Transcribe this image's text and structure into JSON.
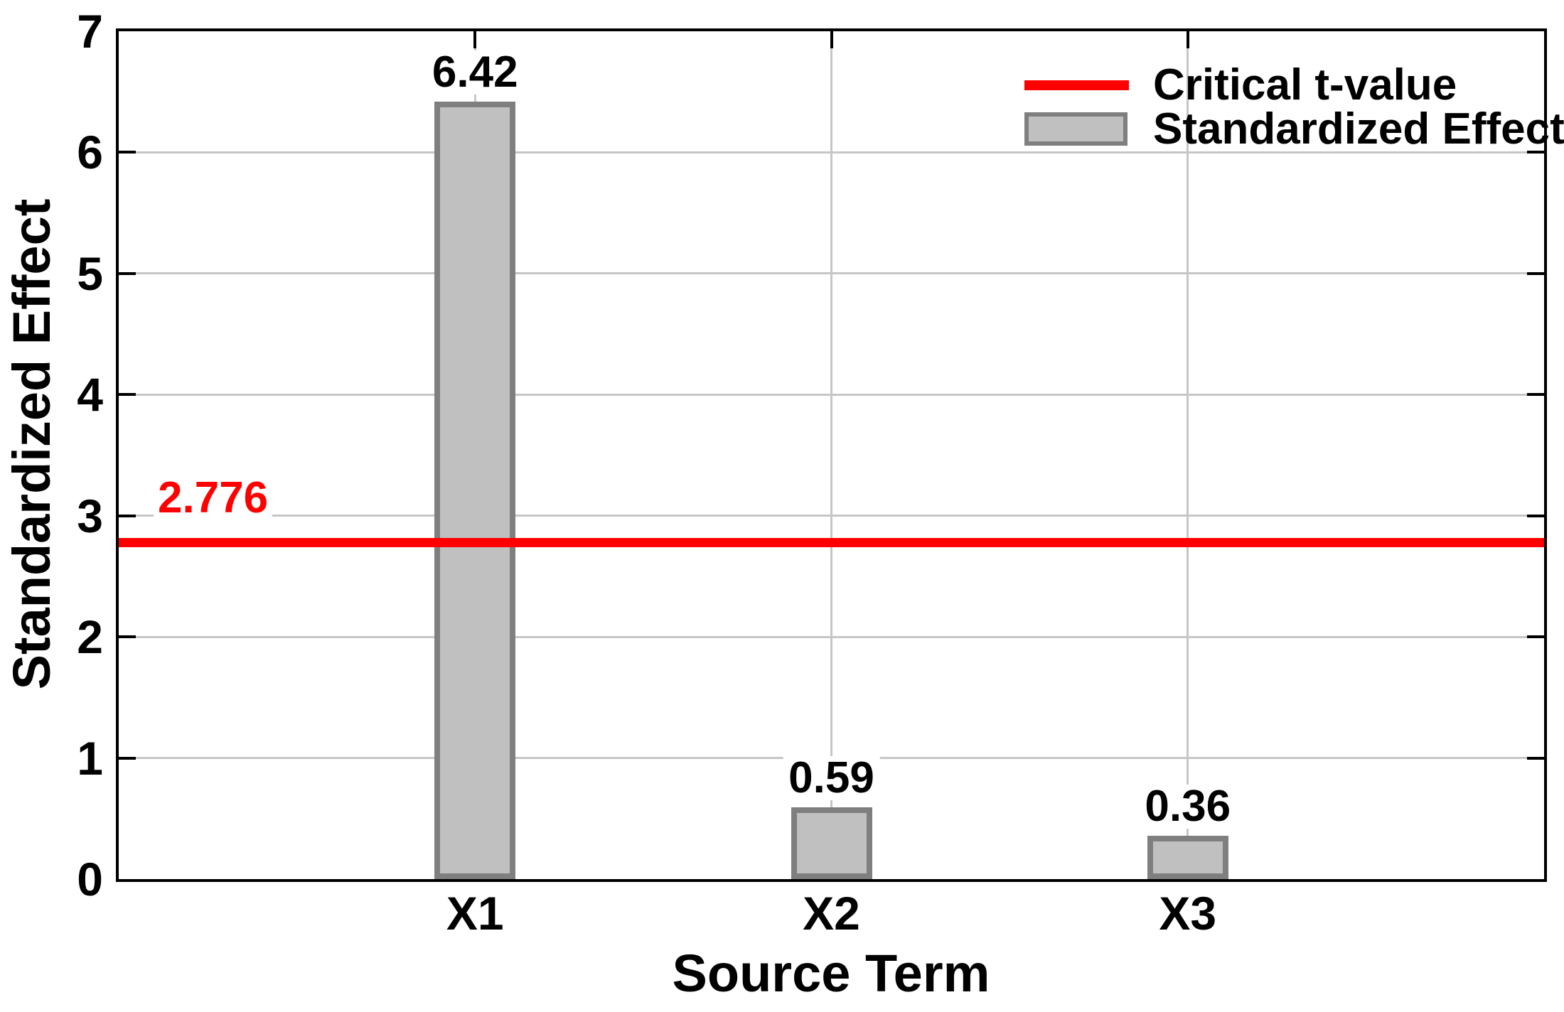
{
  "chart_data": {
    "type": "bar",
    "categories": [
      "X1",
      "X2",
      "X3"
    ],
    "values": [
      6.42,
      0.59,
      0.36
    ],
    "value_labels": [
      "6.42",
      "0.59",
      "0.36"
    ],
    "title": "",
    "xlabel": "Source Term",
    "ylabel": "Standardized Effect",
    "ylim": [
      0,
      7
    ],
    "yticks": [
      "0",
      "1",
      "2",
      "3",
      "4",
      "5",
      "6",
      "7"
    ],
    "grid": true,
    "legend_position": "top-right-inside",
    "critical_line": {
      "value": 2.776,
      "label": "2.776"
    },
    "legend": {
      "entries": [
        {
          "label": "Critical t-value",
          "swatch": "line"
        },
        {
          "label": "Standardized Effect",
          "swatch": "box"
        }
      ]
    },
    "colors": {
      "critical_line": "#ff0000",
      "critical_label": "#ff0000",
      "bar_fill": "#c0c0c0",
      "bar_border": "#7f7f7f",
      "gridline": "#c6c6c6",
      "axis": "#000000"
    }
  }
}
